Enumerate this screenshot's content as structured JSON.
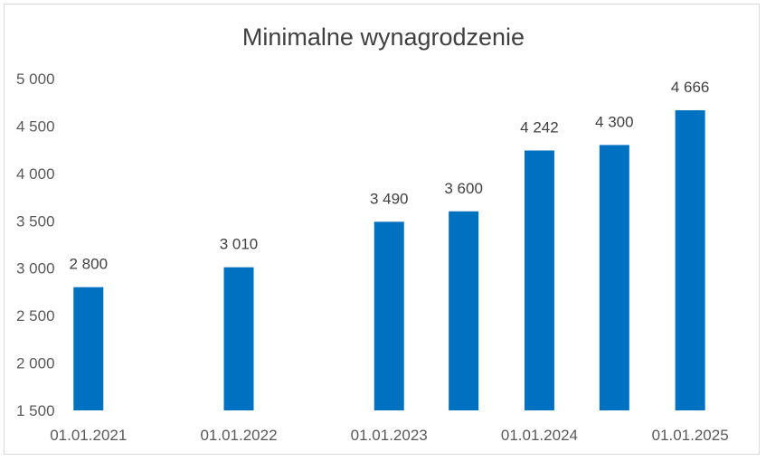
{
  "chart_data": {
    "type": "bar",
    "title": "Minimalne wynagrodzenie",
    "xlabel": "",
    "ylabel": "",
    "ylim": [
      1500,
      5000
    ],
    "yticks": [
      1500,
      2000,
      2500,
      3000,
      3500,
      4000,
      4500,
      5000
    ],
    "ytick_labels": [
      "1 500",
      "2 000",
      "2 500",
      "3 000",
      "3 500",
      "4 000",
      "4 500",
      "5 000"
    ],
    "x_axis": "date",
    "xrange": [
      "2020-11-01",
      "2025-03-01"
    ],
    "xticks": [
      "2021-01-01",
      "2022-01-01",
      "2023-01-01",
      "2024-01-01",
      "2025-01-01"
    ],
    "xtick_labels": [
      "01.01.2021",
      "01.01.2022",
      "01.01.2023",
      "01.01.2024",
      "01.01.2025"
    ],
    "grid": false,
    "legend": "none",
    "bar_color": "#0070C0",
    "points": [
      {
        "date": "2021-01-01",
        "value": 2800,
        "label": "2 800"
      },
      {
        "date": "2022-01-01",
        "value": 3010,
        "label": "3 010"
      },
      {
        "date": "2023-01-01",
        "value": 3490,
        "label": "3 490"
      },
      {
        "date": "2023-07-01",
        "value": 3600,
        "label": "3 600"
      },
      {
        "date": "2024-01-01",
        "value": 4242,
        "label": "4 242"
      },
      {
        "date": "2024-07-01",
        "value": 4300,
        "label": "4 300"
      },
      {
        "date": "2025-01-01",
        "value": 4666,
        "label": "4 666"
      }
    ]
  }
}
